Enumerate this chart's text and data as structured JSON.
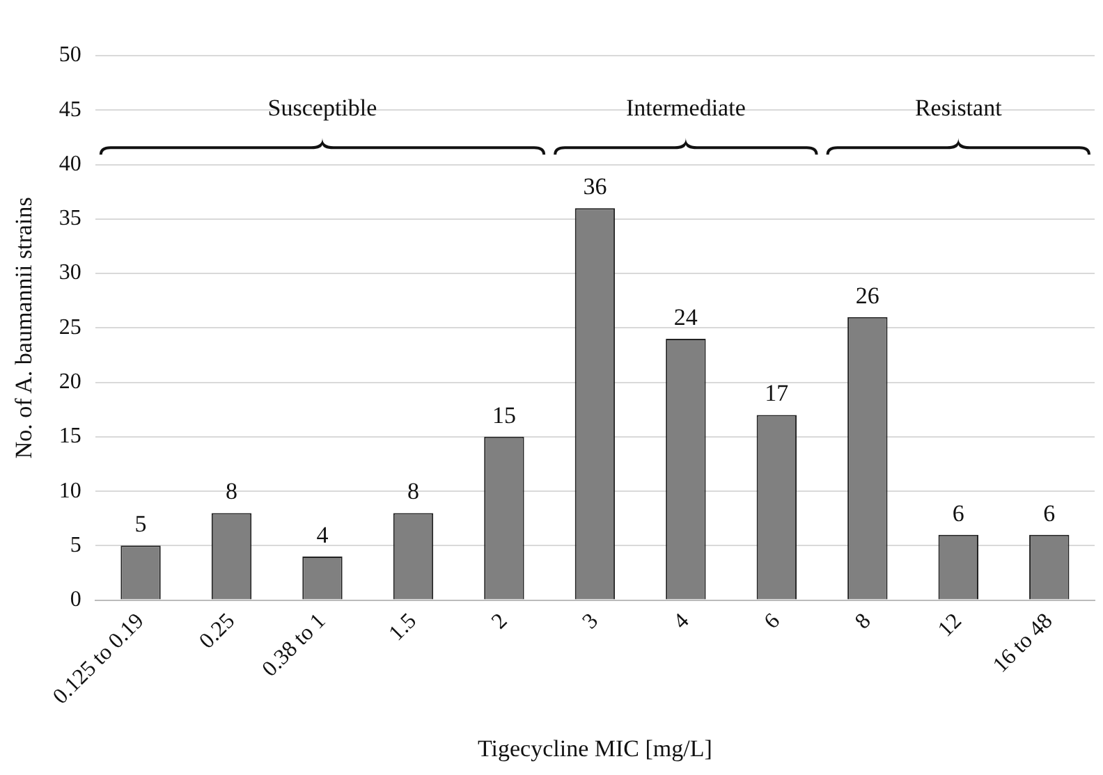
{
  "chart_data": {
    "type": "bar",
    "xlabel": "Tigecycline MIC [mg/L]",
    "ylabel": "No. of A. baumannii strains",
    "categories": [
      "0.125 to 0.19",
      "0.25",
      "0.38 to 1",
      "1.5",
      "2",
      "3",
      "4",
      "6",
      "8",
      "12",
      "16 to 48"
    ],
    "values": [
      5,
      8,
      4,
      8,
      15,
      36,
      24,
      17,
      26,
      6,
      6
    ],
    "color": "#808080",
    "ylim": [
      0,
      50
    ],
    "yticks": [
      0,
      5,
      10,
      15,
      20,
      25,
      30,
      35,
      40,
      45,
      50
    ],
    "grid": "y",
    "legend": false,
    "data_labels": true,
    "annotations": [
      "Susceptible",
      "Intermediate",
      "Resistant"
    ]
  }
}
